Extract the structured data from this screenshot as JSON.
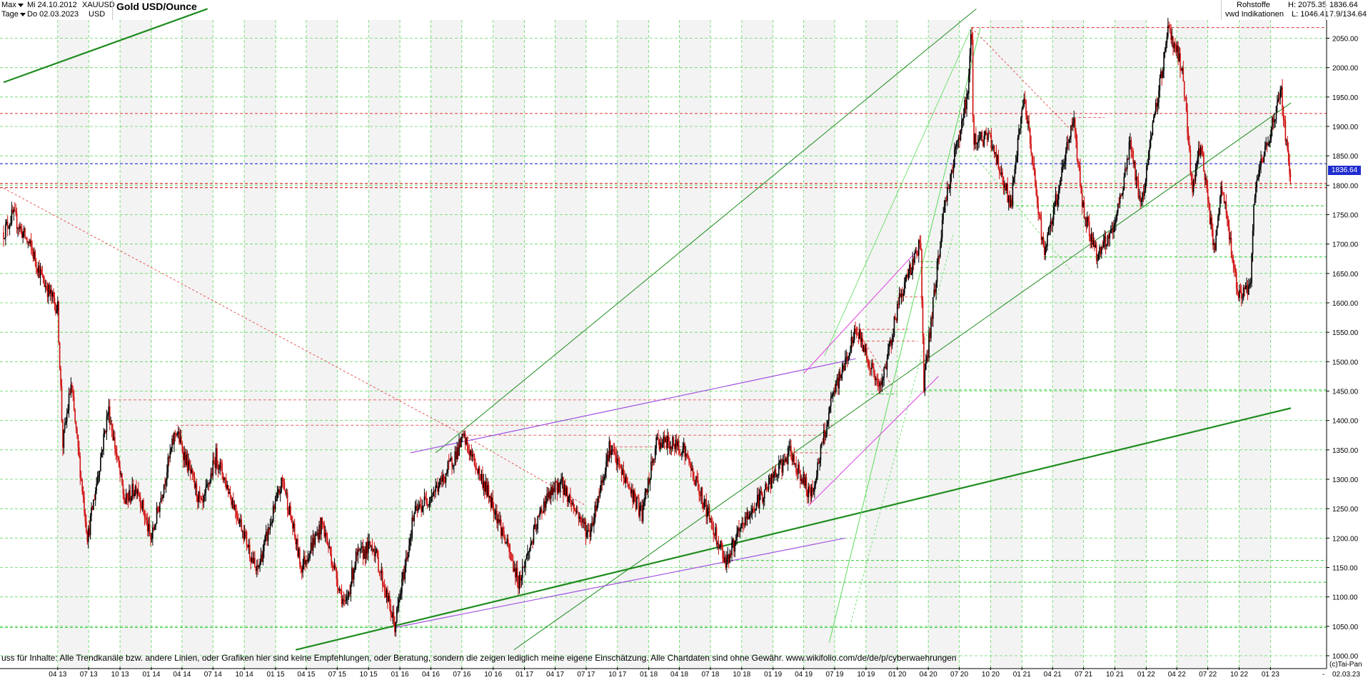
{
  "header": {
    "period_select": "Max",
    "interval_select": "Tage",
    "start_date": "Mi 24.10.2012",
    "end_date": "Do 02.03.2023",
    "symbol": "XAUUSD",
    "currency": "USD",
    "instrument_title": "Gold USD/Ounce",
    "category": "Rohstoffe",
    "source": "vwd Indikationen",
    "high": "H: 2075.35",
    "low": "L: 1046.41",
    "last_price": "1836.64",
    "change": "7.9/134.64"
  },
  "footer": {
    "disclaimer": "uss für Inhalte: Alle Trendkanäle bzw. andere Linien, oder Grafiken hier sind keine Empfehlungen, oder Beratung, sondern die zeigen lediglich meine eigene Einschätzung. Alle Chartdaten sind ohne Gewähr.  www.wikifolio.com/de/de/p/cyberwaehrungen",
    "copyright": "(c)Tai-Pan",
    "last_date": "02.03.23",
    "last_date_dash": "-"
  },
  "colors": {
    "grid": "#2ecc2e",
    "support": "#1e8c1e",
    "resistance": "#e03030",
    "channel": "#a050e0",
    "magenta": "#e040e0",
    "current_price": "#1f2ccf"
  },
  "chart_data": {
    "type": "candlestick",
    "title": "Gold USD/Ounce",
    "ylim": [
      1000,
      2090
    ],
    "y_ticks": [
      1000,
      1050,
      1100,
      1150,
      1200,
      1250,
      1300,
      1350,
      1400,
      1450,
      1500,
      1550,
      1600,
      1650,
      1700,
      1750,
      1800,
      1850,
      1900,
      1950,
      2000,
      2050
    ],
    "y_tick_labels": [
      "1000.00",
      "1050.00",
      "1100.00",
      "1150.00",
      "1200.00",
      "1250.00",
      "1300.00",
      "1350.00",
      "1400.00",
      "1450.00",
      "1500.00",
      "1550.00",
      "1600.00",
      "1650.00",
      "1700.00",
      "1750.00",
      "1800.00",
      "1850.00",
      "1900.00",
      "1950.00",
      "2000.00",
      "2050.00"
    ],
    "x_tick_labels": [
      "04 13",
      "07 13",
      "10 13",
      "01 14",
      "04 14",
      "07 14",
      "10 14",
      "01 15",
      "04 15",
      "07 15",
      "10 15",
      "01 16",
      "04 16",
      "07 16",
      "10 16",
      "01 17",
      "04 17",
      "07 17",
      "10 17",
      "01 18",
      "04 18",
      "07 18",
      "10 18",
      "01 19",
      "04 19",
      "07 19",
      "10 19",
      "01 20",
      "04 20",
      "07 20",
      "10 20",
      "01 21",
      "04 21",
      "07 21",
      "10 21",
      "01 22",
      "04 22",
      "07 22",
      "10 22",
      "01 23"
    ],
    "x_start": "2012-10-24",
    "x_end": "2023-03-02",
    "current_price": 1836.64,
    "price_path": [
      [
        "2012-10-24",
        1720
      ],
      [
        "2012-11-20",
        1750
      ],
      [
        "2013-01-15",
        1690
      ],
      [
        "2013-02-15",
        1640
      ],
      [
        "2013-04-01",
        1590
      ],
      [
        "2013-04-16",
        1360
      ],
      [
        "2013-05-10",
        1460
      ],
      [
        "2013-06-28",
        1200
      ],
      [
        "2013-08-28",
        1420
      ],
      [
        "2013-10-15",
        1260
      ],
      [
        "2013-11-20",
        1290
      ],
      [
        "2013-12-31",
        1195
      ],
      [
        "2014-03-14",
        1385
      ],
      [
        "2014-05-30",
        1250
      ],
      [
        "2014-07-10",
        1340
      ],
      [
        "2014-09-30",
        1210
      ],
      [
        "2014-11-06",
        1140
      ],
      [
        "2015-01-22",
        1300
      ],
      [
        "2015-03-17",
        1150
      ],
      [
        "2015-05-18",
        1225
      ],
      [
        "2015-07-24",
        1080
      ],
      [
        "2015-08-24",
        1165
      ],
      [
        "2015-10-14",
        1190
      ],
      [
        "2015-12-17",
        1050
      ],
      [
        "2016-02-11",
        1240
      ],
      [
        "2016-05-02",
        1295
      ],
      [
        "2016-07-06",
        1370
      ],
      [
        "2016-10-06",
        1250
      ],
      [
        "2016-12-15",
        1125
      ],
      [
        "2017-02-27",
        1260
      ],
      [
        "2017-04-17",
        1295
      ],
      [
        "2017-07-10",
        1205
      ],
      [
        "2017-09-08",
        1355
      ],
      [
        "2017-12-12",
        1240
      ],
      [
        "2018-01-25",
        1365
      ],
      [
        "2018-04-11",
        1355
      ],
      [
        "2018-08-16",
        1160
      ],
      [
        "2018-10-11",
        1230
      ],
      [
        "2019-02-20",
        1345
      ],
      [
        "2019-04-23",
        1270
      ],
      [
        "2019-06-25",
        1440
      ],
      [
        "2019-09-04",
        1555
      ],
      [
        "2019-11-12",
        1450
      ],
      [
        "2020-01-08",
        1610
      ],
      [
        "2020-03-09",
        1705
      ],
      [
        "2020-03-19",
        1460
      ],
      [
        "2020-05-18",
        1765
      ],
      [
        "2020-07-27",
        1960
      ],
      [
        "2020-08-06",
        2075
      ],
      [
        "2020-08-11",
        1880
      ],
      [
        "2020-09-30",
        1880
      ],
      [
        "2020-11-30",
        1765
      ],
      [
        "2021-01-06",
        1955
      ],
      [
        "2021-03-08",
        1680
      ],
      [
        "2021-06-01",
        1915
      ],
      [
        "2021-06-30",
        1760
      ],
      [
        "2021-08-09",
        1680
      ],
      [
        "2021-09-30",
        1725
      ],
      [
        "2021-11-16",
        1875
      ],
      [
        "2021-12-15",
        1760
      ],
      [
        "2022-03-08",
        2070
      ],
      [
        "2022-04-18",
        1995
      ],
      [
        "2022-05-16",
        1790
      ],
      [
        "2022-06-10",
        1875
      ],
      [
        "2022-07-21",
        1680
      ],
      [
        "2022-08-10",
        1800
      ],
      [
        "2022-09-28",
        1615
      ],
      [
        "2022-11-03",
        1620
      ],
      [
        "2022-11-15",
        1790
      ],
      [
        "2023-02-01",
        1960
      ],
      [
        "2023-02-28",
        1810
      ],
      [
        "2023-03-02",
        1836.64
      ]
    ]
  }
}
